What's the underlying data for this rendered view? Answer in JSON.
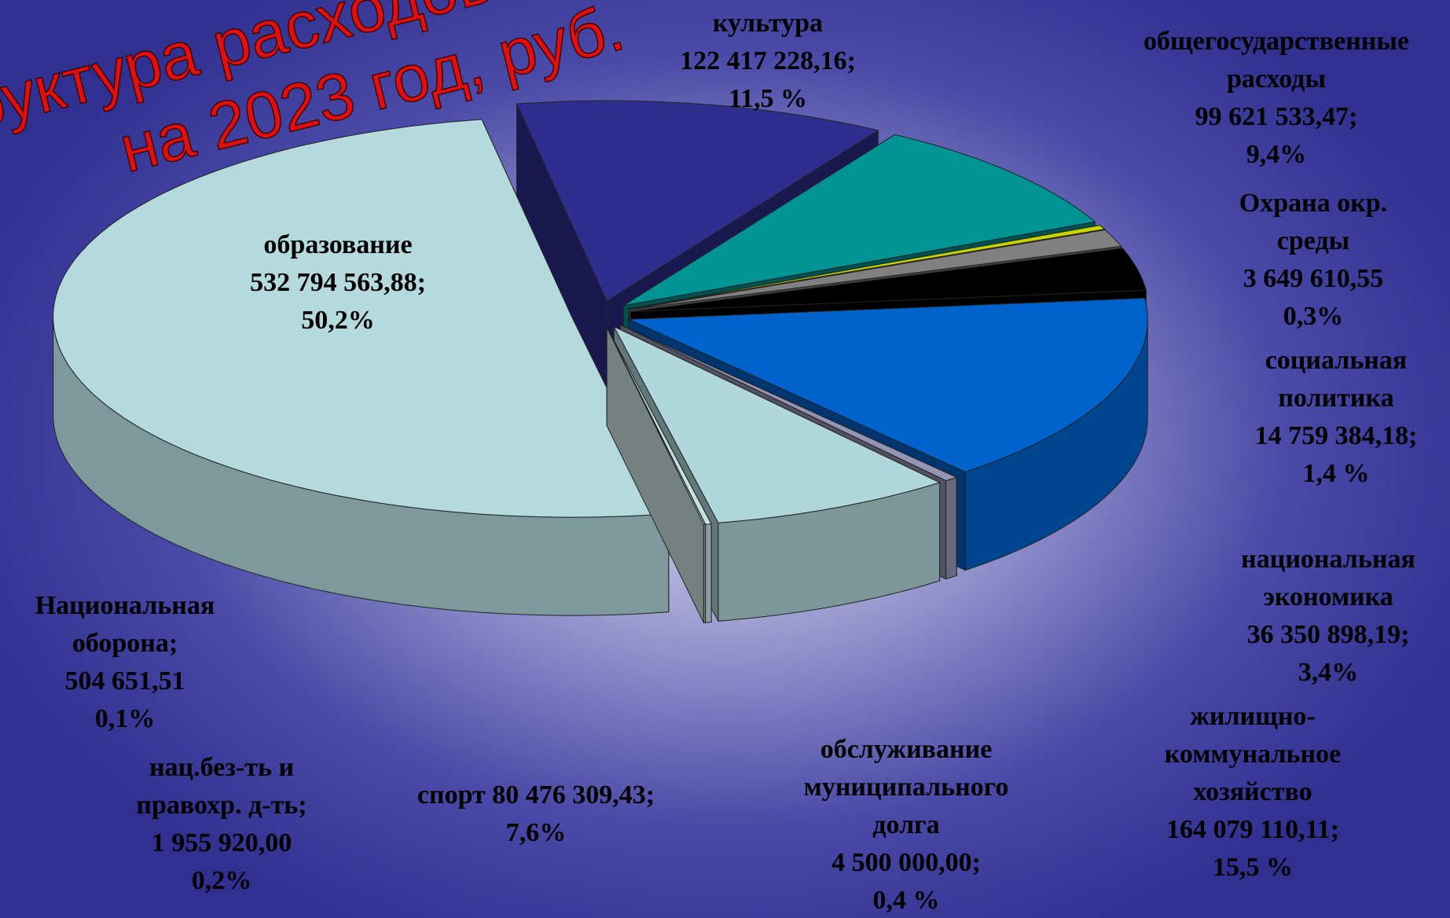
{
  "chart_data": {
    "type": "pie",
    "title": [
      "Структура расходов",
      "на 2023 год,  руб."
    ],
    "categories": [
      "культура",
      "общегосударственные расходы",
      "Охрана окр. среды",
      "социальная политика",
      "национальная экономика",
      "жилищно-коммунальное хозяйство",
      "обслуживание муниципального долга",
      "спорт",
      "нац.без-ть и правохр. д-ть;",
      "Национальная оборона;",
      "образование"
    ],
    "values": [
      122417228.16,
      99621533.47,
      3649610.55,
      14759384.18,
      36350898.19,
      164079110.11,
      4500000.0,
      80476309.43,
      1955920.0,
      504651.51,
      532794563.88
    ],
    "value_labels": [
      "122 417 228,16;",
      "99 621 533,47;",
      "3 649 610,55",
      "14 759 384,18;",
      "36 350 898,19;",
      "164 079 110,11;",
      "4 500 000,00;",
      "80 476 309,43;",
      "1 955 920,00",
      "504 651,51",
      "532 794 563,88;"
    ],
    "percent_labels": [
      "11,5 %",
      "9,4%",
      "0,3%",
      "1,4 %",
      "3,4%",
      "15,5 %",
      "0,4 %",
      "7,6%",
      "0,2%",
      "0,1%",
      "50,2%"
    ],
    "colors": [
      "#2e2e8f",
      "#009494",
      "#c8d400",
      "#808080",
      "#000000",
      "#0062cc",
      "#9494b4",
      "#b0d8dc",
      "#c4e2e2",
      "#d4eaea",
      "#b4dadd"
    ]
  }
}
